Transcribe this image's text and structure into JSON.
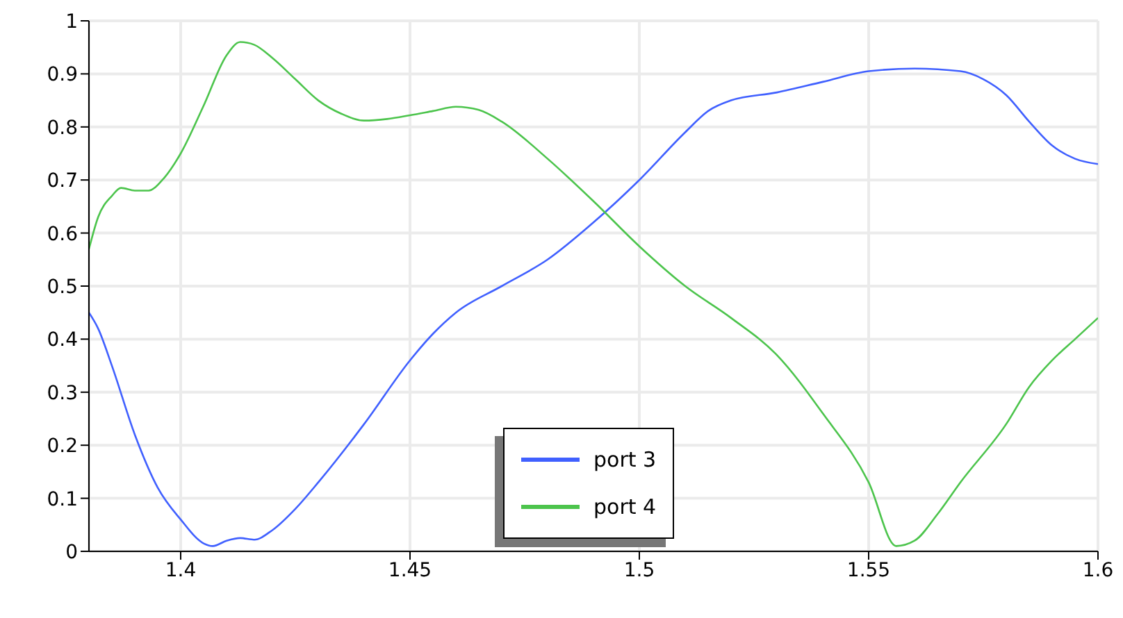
{
  "chart_data": {
    "type": "line",
    "xlim": [
      1.38,
      1.6
    ],
    "xticks": [
      1.4,
      1.45,
      1.5,
      1.55,
      1.6
    ],
    "ylim": [
      0,
      1
    ],
    "yticks": [
      0,
      0.1,
      0.2,
      0.3,
      0.4,
      0.5,
      0.6,
      0.7,
      0.8,
      0.9,
      1
    ],
    "grid": true,
    "legend": "bottom",
    "series": [
      {
        "name": "port 3",
        "color": "#4060ff",
        "x": [
          1.38,
          1.382,
          1.385,
          1.39,
          1.395,
          1.4,
          1.405,
          1.407,
          1.41,
          1.413,
          1.416,
          1.42,
          1.425,
          1.43,
          1.44,
          1.45,
          1.455,
          1.46,
          1.47,
          1.48,
          1.49,
          1.5,
          1.51,
          1.515,
          1.52,
          1.53,
          1.54,
          1.55,
          1.56,
          1.57,
          1.575,
          1.58,
          1.585,
          1.59,
          1.595,
          1.6
        ],
        "values": [
          0.45,
          0.42,
          0.35,
          0.22,
          0.12,
          0.06,
          0.015,
          0.01,
          0.02,
          0.025,
          0.022,
          0.04,
          0.08,
          0.13,
          0.24,
          0.36,
          0.41,
          0.45,
          0.5,
          0.55,
          0.62,
          0.7,
          0.79,
          0.83,
          0.85,
          0.865,
          0.885,
          0.905,
          0.91,
          0.905,
          0.89,
          0.86,
          0.81,
          0.765,
          0.74,
          0.73
        ]
      },
      {
        "name": "port 4",
        "color": "#4cc44c",
        "x": [
          1.38,
          1.382,
          1.385,
          1.387,
          1.39,
          1.393,
          1.396,
          1.4,
          1.405,
          1.41,
          1.413,
          1.416,
          1.42,
          1.425,
          1.43,
          1.435,
          1.44,
          1.445,
          1.45,
          1.455,
          1.46,
          1.465,
          1.47,
          1.48,
          1.49,
          1.5,
          1.51,
          1.52,
          1.53,
          1.54,
          1.55,
          1.556,
          1.56,
          1.565,
          1.57,
          1.58,
          1.585,
          1.59,
          1.595,
          1.6
        ],
        "values": [
          0.57,
          0.63,
          0.67,
          0.685,
          0.68,
          0.68,
          0.7,
          0.75,
          0.84,
          0.935,
          0.96,
          0.955,
          0.93,
          0.89,
          0.85,
          0.825,
          0.812,
          0.815,
          0.822,
          0.83,
          0.838,
          0.832,
          0.81,
          0.74,
          0.66,
          0.575,
          0.5,
          0.44,
          0.37,
          0.26,
          0.13,
          0.01,
          0.02,
          0.07,
          0.13,
          0.24,
          0.31,
          0.36,
          0.4,
          0.44
        ]
      }
    ]
  }
}
